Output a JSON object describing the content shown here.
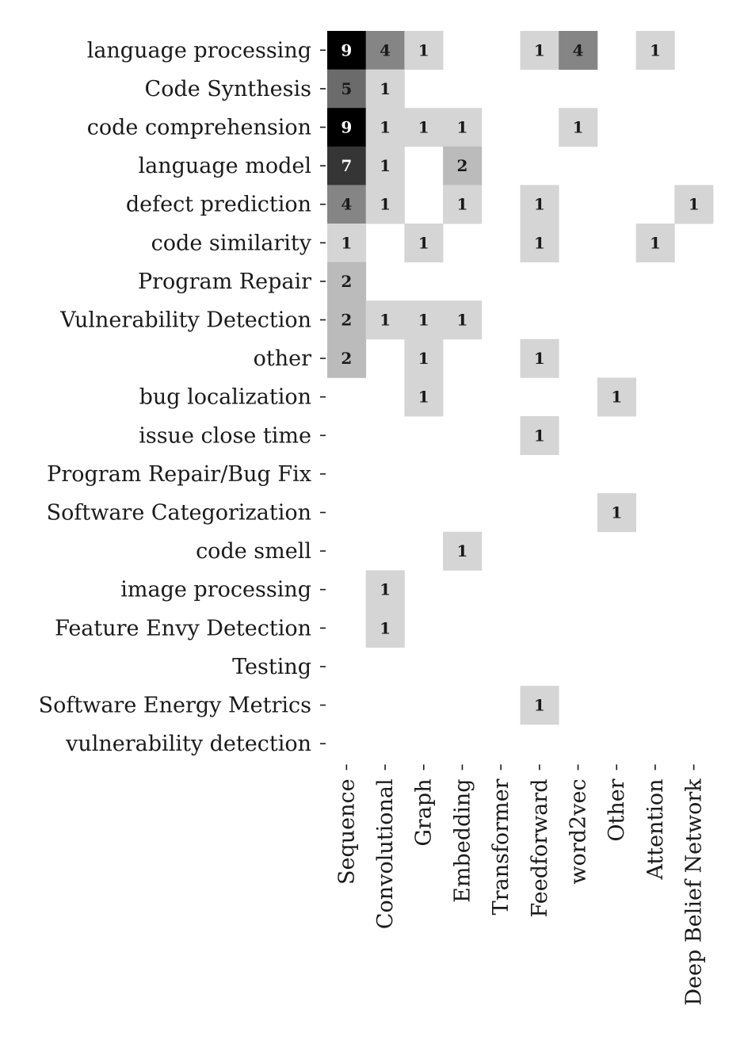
{
  "chart_data": {
    "type": "heatmap",
    "title": "",
    "xlabel": "",
    "ylabel": "",
    "x_categories": [
      "Sequence",
      "Convolutional",
      "Graph",
      "Embedding",
      "Transformer",
      "Feedforward",
      "word2vec",
      "Other",
      "Attention",
      "Deep Belief Network"
    ],
    "y_categories": [
      "language processing",
      "Code Synthesis",
      "code comprehension",
      "language model",
      "defect prediction",
      "code similarity",
      "Program Repair",
      "Vulnerability Detection",
      "other",
      "bug localization",
      "issue close time",
      "Program Repair/Bug Fix",
      "Software Categorization",
      "code smell",
      "image processing",
      "Feature Envy Detection",
      "Testing",
      "Software Energy Metrics",
      "vulnerability detection"
    ],
    "values": [
      [
        9,
        4,
        1,
        0,
        0,
        1,
        4,
        0,
        1,
        0
      ],
      [
        5,
        1,
        0,
        0,
        0,
        0,
        0,
        0,
        0,
        0
      ],
      [
        9,
        1,
        1,
        1,
        0,
        0,
        1,
        0,
        0,
        0
      ],
      [
        7,
        1,
        0,
        2,
        0,
        0,
        0,
        0,
        0,
        0
      ],
      [
        4,
        1,
        0,
        1,
        0,
        1,
        0,
        0,
        0,
        1
      ],
      [
        1,
        0,
        1,
        0,
        0,
        1,
        0,
        0,
        1,
        0
      ],
      [
        2,
        0,
        0,
        0,
        0,
        0,
        0,
        0,
        0,
        0
      ],
      [
        2,
        1,
        1,
        1,
        0,
        0,
        0,
        0,
        0,
        0
      ],
      [
        2,
        0,
        1,
        0,
        0,
        1,
        0,
        0,
        0,
        0
      ],
      [
        0,
        0,
        1,
        0,
        0,
        0,
        0,
        1,
        0,
        0
      ],
      [
        0,
        0,
        0,
        0,
        0,
        1,
        0,
        0,
        0,
        0
      ],
      [
        0,
        0,
        0,
        0,
        0,
        0,
        0,
        0,
        0,
        0
      ],
      [
        0,
        0,
        0,
        0,
        0,
        0,
        0,
        1,
        0,
        0
      ],
      [
        0,
        0,
        0,
        1,
        0,
        0,
        0,
        0,
        0,
        0
      ],
      [
        0,
        1,
        0,
        0,
        0,
        0,
        0,
        0,
        0,
        0
      ],
      [
        0,
        1,
        0,
        0,
        0,
        0,
        0,
        0,
        0,
        0
      ],
      [
        0,
        0,
        0,
        0,
        0,
        0,
        0,
        0,
        0,
        0
      ],
      [
        0,
        0,
        0,
        0,
        0,
        1,
        0,
        0,
        0,
        0
      ],
      [
        0,
        0,
        0,
        0,
        0,
        0,
        0,
        0,
        0,
        0
      ]
    ],
    "color_scale": "greys",
    "value_range": [
      0,
      9
    ],
    "zero_cells_shown": false,
    "annotations": true,
    "grid": false,
    "legend": "none"
  }
}
